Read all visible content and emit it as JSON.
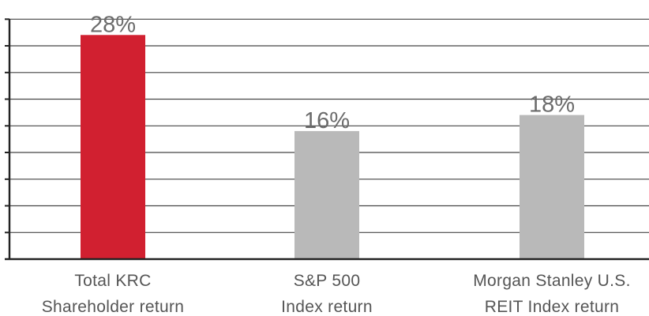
{
  "chart_data": {
    "type": "bar",
    "categories": [
      [
        "Total KRC",
        "Shareholder return"
      ],
      [
        "S&P 500",
        "Index return"
      ],
      [
        "Morgan Stanley U.S.",
        "REIT Index return"
      ]
    ],
    "values": [
      28,
      16,
      18
    ],
    "data_labels": [
      "28%",
      "16%",
      "18%"
    ],
    "bar_colors": [
      "#d12030",
      "#b9b9b9",
      "#b9b9b9"
    ],
    "ylim": [
      0,
      30
    ],
    "y_gridline_step": 3.33,
    "grid": true,
    "legend": "none",
    "title": "",
    "xlabel": "",
    "ylabel": ""
  }
}
